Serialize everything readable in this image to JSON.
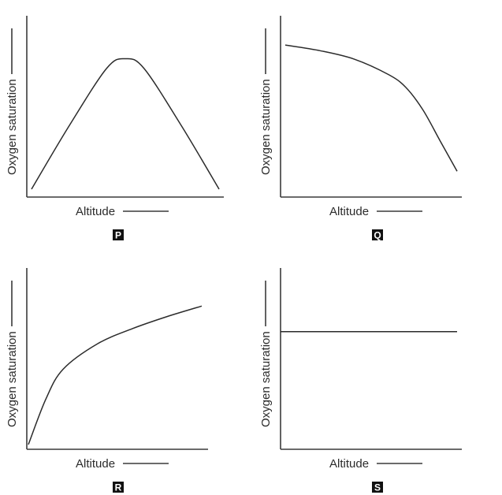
{
  "chart_data": [
    {
      "type": "line",
      "panel_label": "P",
      "xlabel": "Altitude",
      "ylabel": "Oxygen saturation",
      "ticks": "none",
      "xlim": [
        0,
        10
      ],
      "ylim": [
        0,
        10
      ],
      "series": [
        {
          "x": [
            0,
            2,
            4,
            5,
            6,
            8,
            10
          ],
          "y": [
            0,
            4.5,
            8.6,
            9.3,
            8.6,
            4.5,
            0
          ]
        }
      ]
    },
    {
      "type": "line",
      "panel_label": "Q",
      "xlabel": "Altitude",
      "ylabel": "Oxygen saturation",
      "ticks": "none",
      "xlim": [
        0,
        10
      ],
      "ylim": [
        0,
        10
      ],
      "series": [
        {
          "x": [
            0,
            2,
            4,
            6,
            7,
            8,
            9,
            10
          ],
          "y": [
            9.6,
            9.2,
            8.6,
            7.5,
            6.6,
            5.0,
            2.8,
            0.6
          ]
        }
      ]
    },
    {
      "type": "line",
      "panel_label": "R",
      "xlabel": "Altitude",
      "ylabel": "Oxygen saturation",
      "ticks": "none",
      "xlim": [
        0,
        10
      ],
      "ylim": [
        0,
        10
      ],
      "series": [
        {
          "x": [
            0,
            1,
            2,
            4,
            6,
            8,
            10
          ],
          "y": [
            0,
            3.0,
            5.0,
            6.7,
            7.7,
            8.5,
            9.2
          ]
        }
      ]
    },
    {
      "type": "line",
      "panel_label": "S",
      "xlabel": "Altitude",
      "ylabel": "Oxygen saturation",
      "ticks": "none",
      "xlim": [
        0,
        10
      ],
      "ylim": [
        0,
        10
      ],
      "series": [
        {
          "x": [
            0,
            10
          ],
          "y": [
            7.5,
            7.5
          ]
        }
      ]
    }
  ]
}
